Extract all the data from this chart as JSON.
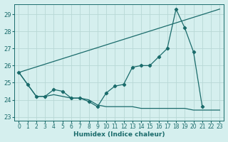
{
  "xlabel": "Humidex (Indice chaleur)",
  "xlim": [
    -0.5,
    23.5
  ],
  "ylim": [
    22.8,
    29.6
  ],
  "yticks": [
    23,
    24,
    25,
    26,
    27,
    28,
    29
  ],
  "xticks": [
    0,
    1,
    2,
    3,
    4,
    5,
    6,
    7,
    8,
    9,
    10,
    11,
    12,
    13,
    14,
    15,
    16,
    17,
    18,
    19,
    20,
    21,
    22,
    23
  ],
  "bg_color": "#d5efee",
  "grid_color": "#b8d8d5",
  "line_color": "#1a6b6b",
  "trend_x": [
    0,
    23
  ],
  "trend_y": [
    25.6,
    29.3
  ],
  "flat_x": [
    0,
    1,
    2,
    3,
    4,
    5,
    6,
    7,
    8,
    9,
    10,
    11,
    12,
    13,
    14,
    15,
    16,
    17,
    18,
    19,
    20,
    21,
    22,
    23
  ],
  "flat_y": [
    25.6,
    24.9,
    24.2,
    24.2,
    24.3,
    24.2,
    24.1,
    24.1,
    24.0,
    23.7,
    23.6,
    23.6,
    23.6,
    23.6,
    23.5,
    23.5,
    23.5,
    23.5,
    23.5,
    23.5,
    23.4,
    23.4,
    23.4,
    23.4
  ],
  "zigzag_x": [
    0,
    1,
    2,
    3,
    4,
    5,
    6,
    7,
    8,
    9,
    10,
    11,
    12,
    13,
    14,
    15,
    16,
    17,
    18,
    19,
    20,
    21
  ],
  "zigzag_y": [
    25.6,
    24.9,
    24.2,
    24.2,
    24.6,
    24.5,
    24.1,
    24.1,
    23.9,
    23.6,
    24.4,
    24.8,
    24.9,
    25.9,
    26.0,
    26.0,
    26.5,
    27.0,
    29.3,
    28.2,
    26.8,
    23.6
  ]
}
